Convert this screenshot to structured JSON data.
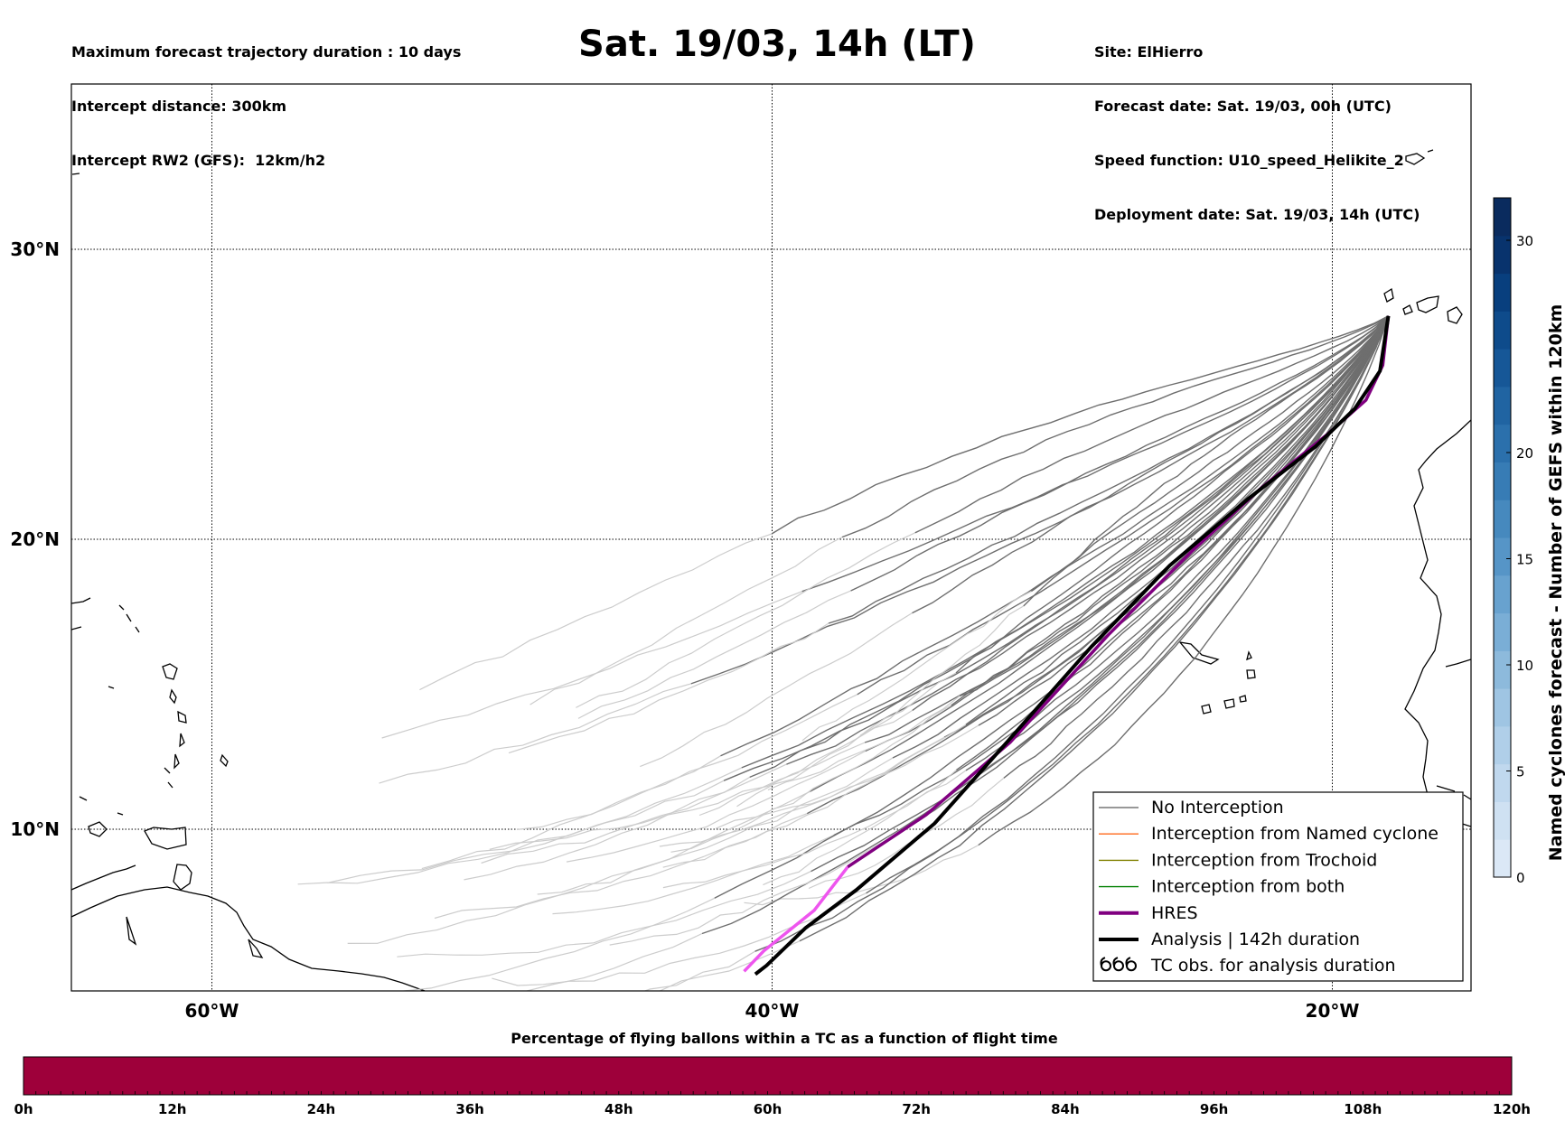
{
  "header": {
    "left_lines": [
      "Maximum forecast trajectory duration : 10 days",
      "Intercept distance: 300km",
      "Intercept RW2 (GFS):  12km/h2"
    ],
    "title": "Sat. 19/03, 14h (LT)",
    "right_lines": [
      "Site: ElHierro",
      "Forecast date: Sat. 19/03, 00h (UTC)",
      "Speed function: U10_speed_Helikite_2",
      "Deployment date: Sat. 19/03, 14h (UTC)"
    ]
  },
  "chart_data": {
    "type": "line",
    "map": {
      "lon_range": [
        -65,
        15
      ],
      "lat_range": [
        5,
        35
      ],
      "lon_ticks": [
        {
          "value": -60,
          "label": "60°W"
        },
        {
          "value": -40,
          "label": "40°W"
        },
        {
          "value": -20,
          "label": "20°W"
        }
      ],
      "lat_ticks": [
        {
          "value": 10,
          "label": "10°N"
        },
        {
          "value": 20,
          "label": "20°N"
        },
        {
          "value": 30,
          "label": "30°N"
        }
      ],
      "grid": true
    },
    "launch_site": {
      "name": "ElHierro",
      "lon": -18.0,
      "lat": 27.7
    },
    "ensemble_count": 40,
    "series": [
      {
        "name": "HRES",
        "color": "#800080",
        "early_color": "#ee55ee",
        "points": [
          [
            -18.0,
            27.7
          ],
          [
            -18.2,
            26.0
          ],
          [
            -18.8,
            24.8
          ],
          [
            -20.2,
            23.6
          ],
          [
            -22.5,
            21.8
          ],
          [
            -25.0,
            19.6
          ],
          [
            -28.0,
            16.7
          ],
          [
            -31.5,
            13.0
          ],
          [
            -34.5,
            10.5
          ],
          [
            -37.3,
            8.7
          ],
          [
            -38.5,
            7.2
          ],
          [
            -40.3,
            5.8
          ],
          [
            -41.0,
            5.1
          ]
        ],
        "purple_until_index": 9
      },
      {
        "name": "Analysis | 142h duration",
        "color": "#000000",
        "points": [
          [
            -18.0,
            27.7
          ],
          [
            -18.3,
            25.8
          ],
          [
            -19.2,
            24.5
          ],
          [
            -20.6,
            23.2
          ],
          [
            -23.0,
            21.4
          ],
          [
            -25.8,
            19.1
          ],
          [
            -28.6,
            16.3
          ],
          [
            -31.8,
            12.8
          ],
          [
            -34.2,
            10.2
          ],
          [
            -37.0,
            7.9
          ],
          [
            -38.8,
            6.6
          ],
          [
            -40.2,
            5.3
          ],
          [
            -40.6,
            5.0
          ]
        ]
      }
    ],
    "colorbar_right": {
      "label": "Named cyclones forecast - Number of GEFS within 120km",
      "ticks": [
        0,
        5,
        10,
        15,
        20,
        30
      ],
      "range": [
        0,
        32
      ],
      "colormap": "Blues"
    },
    "colorbar_bottom": {
      "title": "Percentage of flying ballons within a TC as a function of flight time",
      "ticks": [
        "0h",
        "12h",
        "24h",
        "36h",
        "48h",
        "60h",
        "72h",
        "84h",
        "96h",
        "108h",
        "120h"
      ],
      "fill_color": "#9e003a",
      "percentage": 0
    },
    "legend": {
      "placement": "lower-right",
      "entries": [
        {
          "label": "No Interception",
          "color": "#777777",
          "style": "line-thin"
        },
        {
          "label": "Interception from Named cyclone",
          "color": "#ff6a1a",
          "style": "line-thin"
        },
        {
          "label": "Interception from Trochoid",
          "color": "#808000",
          "style": "line-thin"
        },
        {
          "label": "Interception from both",
          "color": "#008000",
          "style": "line-thin"
        },
        {
          "label": "HRES",
          "color": "#800080",
          "style": "line-thick"
        },
        {
          "label": "Analysis | 142h duration",
          "color": "#000000",
          "style": "line-thick"
        },
        {
          "label": "TC obs. for analysis duration",
          "color": "#000000",
          "style": "cyclone-symbol",
          "icon": "cyclone-icon"
        }
      ]
    }
  }
}
